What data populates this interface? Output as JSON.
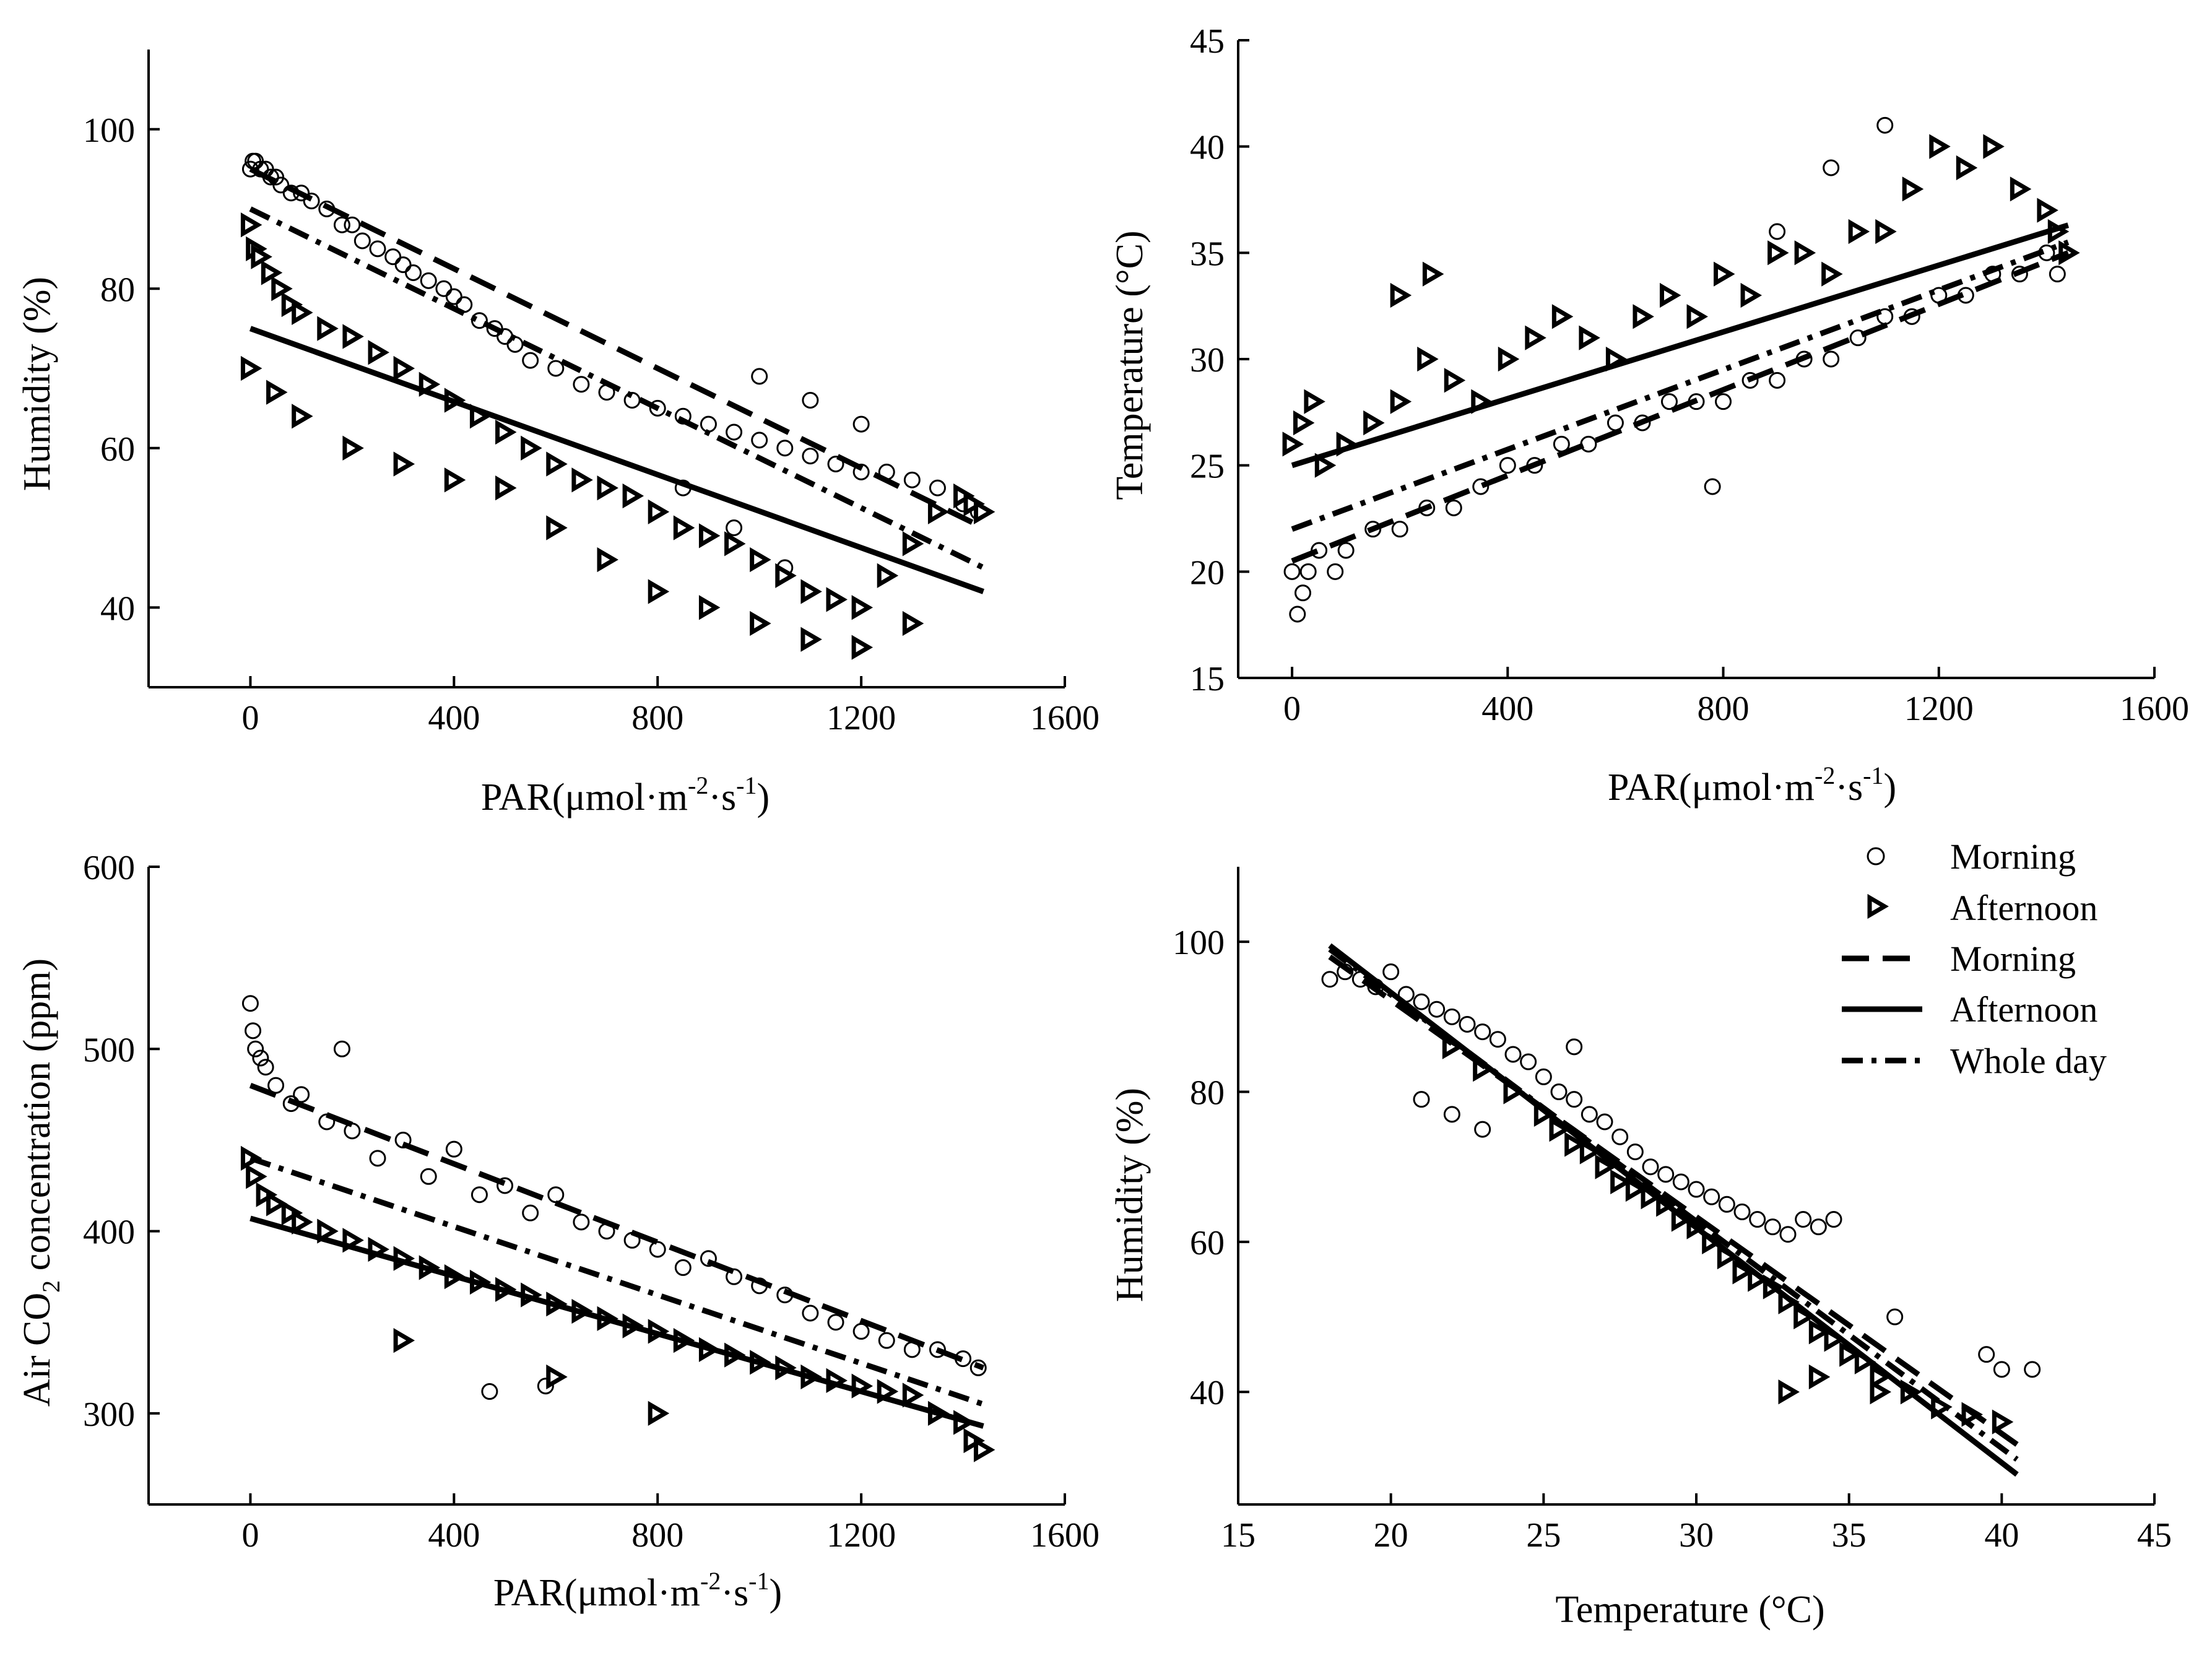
{
  "figure": {
    "description_panels": [
      "humidity-vs-par",
      "temperature-vs-par",
      "co2-vs-par",
      "humidity-vs-temperature"
    ]
  },
  "legend": {
    "entries": [
      {
        "key": "morning_points",
        "label": "Morning",
        "style": "circle"
      },
      {
        "key": "afternoon_points",
        "label": "Afternoon",
        "style": "triangle"
      },
      {
        "key": "morning_fit",
        "label": "Morning",
        "style": "dash"
      },
      {
        "key": "afternoon_fit",
        "label": "Afternoon",
        "style": "solid"
      },
      {
        "key": "wholeday_fit",
        "label": "Whole day",
        "style": "dashdot"
      }
    ],
    "placement": "top-right of bottom-right panel"
  },
  "chart_data": [
    {
      "id": "humidity-vs-par",
      "type": "scatter",
      "xlabel": "PAR(μmol·m-2·s-1)",
      "xlabel_main": "PAR(μmol·m",
      "xlabel_sup1": "-2",
      "xlabel_mid": "·s",
      "xlabel_sup2": "-1",
      "xlabel_end": ")",
      "ylabel": "Humidity (%)",
      "xlim": [
        -200,
        1600
      ],
      "ylim": [
        30,
        110
      ],
      "xticks": [
        0,
        400,
        800,
        1200,
        1600
      ],
      "xtick_labels": [
        "0",
        "400",
        "800",
        "1200",
        "1600"
      ],
      "yticks": [
        40,
        60,
        80,
        100
      ],
      "ytick_labels": [
        "40",
        "60",
        "80",
        "100"
      ],
      "series": [
        {
          "name": "Morning",
          "kind": "points",
          "marker": "circle",
          "x": [
            0,
            5,
            10,
            20,
            30,
            40,
            50,
            60,
            80,
            100,
            120,
            150,
            180,
            200,
            220,
            250,
            280,
            300,
            320,
            350,
            380,
            400,
            420,
            450,
            480,
            500,
            520,
            550,
            600,
            650,
            700,
            750,
            800,
            850,
            900,
            950,
            1000,
            1050,
            1100,
            1150,
            1200,
            1250,
            1300,
            1350,
            1400,
            1430,
            1000,
            1100,
            1200,
            1050,
            950,
            850
          ],
          "y": [
            95,
            96,
            96,
            95,
            95,
            94,
            94,
            93,
            92,
            92,
            91,
            90,
            88,
            88,
            86,
            85,
            84,
            83,
            82,
            81,
            80,
            79,
            78,
            76,
            75,
            74,
            73,
            71,
            70,
            68,
            67,
            66,
            65,
            64,
            63,
            62,
            61,
            60,
            59,
            58,
            57,
            57,
            56,
            55,
            53,
            52,
            69,
            66,
            63,
            45,
            50,
            55
          ]
        },
        {
          "name": "Afternoon",
          "kind": "points",
          "marker": "triangle",
          "x": [
            0,
            10,
            20,
            40,
            60,
            80,
            100,
            150,
            200,
            250,
            300,
            350,
            400,
            450,
            500,
            550,
            600,
            650,
            700,
            750,
            800,
            850,
            900,
            950,
            1000,
            1050,
            1100,
            1150,
            1200,
            1250,
            1300,
            1350,
            1400,
            1420,
            1440,
            0,
            50,
            100,
            200,
            300,
            400,
            500,
            600,
            700,
            800,
            900,
            1000,
            1100,
            1200,
            1300
          ],
          "y": [
            88,
            85,
            84,
            82,
            80,
            78,
            77,
            75,
            74,
            72,
            70,
            68,
            66,
            64,
            62,
            60,
            58,
            56,
            55,
            54,
            52,
            50,
            49,
            48,
            46,
            44,
            42,
            41,
            40,
            44,
            48,
            52,
            54,
            53,
            52,
            70,
            67,
            64,
            60,
            58,
            56,
            55,
            50,
            46,
            42,
            40,
            38,
            36,
            35,
            38
          ]
        },
        {
          "name": "Morning fit",
          "kind": "line",
          "style": "dash",
          "x": [
            0,
            1440
          ],
          "y": [
            95,
            50
          ]
        },
        {
          "name": "Afternoon fit",
          "kind": "line",
          "style": "solid",
          "x": [
            0,
            1440
          ],
          "y": [
            75,
            42
          ]
        },
        {
          "name": "Whole day fit",
          "kind": "line",
          "style": "dashdot",
          "x": [
            0,
            1440
          ],
          "y": [
            90,
            45
          ]
        }
      ]
    },
    {
      "id": "temperature-vs-par",
      "type": "scatter",
      "xlabel": "PAR(μmol·m-2·s-1)",
      "xlabel_main": "PAR(μmol·m",
      "xlabel_sup1": "-2",
      "xlabel_mid": "·s",
      "xlabel_sup2": "-1",
      "xlabel_end": ")",
      "ylabel": "Temperature (°C)",
      "xlim": [
        -100,
        1600
      ],
      "ylim": [
        15,
        45
      ],
      "xticks": [
        0,
        400,
        800,
        1200,
        1600
      ],
      "xtick_labels": [
        "0",
        "400",
        "800",
        "1200",
        "1600"
      ],
      "yticks": [
        15,
        20,
        25,
        30,
        35,
        40,
        45
      ],
      "ytick_labels": [
        "15",
        "20",
        "25",
        "30",
        "35",
        "40",
        "45"
      ],
      "series": [
        {
          "name": "Morning",
          "kind": "points",
          "marker": "circle",
          "x": [
            0,
            10,
            20,
            30,
            50,
            80,
            100,
            150,
            200,
            250,
            300,
            350,
            400,
            450,
            500,
            550,
            600,
            650,
            700,
            750,
            800,
            850,
            900,
            950,
            1000,
            1050,
            1100,
            1150,
            1200,
            1250,
            1300,
            1350,
            1400,
            1420,
            1100,
            1000,
            900,
            780
          ],
          "y": [
            20,
            18,
            19,
            20,
            21,
            20,
            21,
            22,
            22,
            23,
            23,
            24,
            25,
            25,
            26,
            26,
            27,
            27,
            28,
            28,
            28,
            29,
            29,
            30,
            30,
            31,
            32,
            32,
            33,
            33,
            34,
            34,
            35,
            34,
            41,
            39,
            36,
            24
          ]
        },
        {
          "name": "Afternoon",
          "kind": "points",
          "marker": "triangle",
          "x": [
            0,
            20,
            40,
            60,
            100,
            150,
            200,
            250,
            300,
            350,
            400,
            450,
            500,
            550,
            600,
            650,
            700,
            750,
            800,
            850,
            900,
            950,
            1000,
            1050,
            1100,
            1150,
            1200,
            1250,
            1300,
            1350,
            1400,
            1420,
            1440,
            200,
            260
          ],
          "y": [
            26,
            27,
            28,
            25,
            26,
            27,
            28,
            30,
            29,
            28,
            30,
            31,
            32,
            31,
            30,
            32,
            33,
            32,
            34,
            33,
            35,
            35,
            34,
            36,
            36,
            38,
            40,
            39,
            40,
            38,
            37,
            36,
            35,
            33,
            34
          ]
        },
        {
          "name": "Morning fit",
          "kind": "line",
          "style": "dash",
          "x": [
            0,
            1440
          ],
          "y": [
            20.5,
            35
          ]
        },
        {
          "name": "Afternoon fit",
          "kind": "line",
          "style": "solid",
          "x": [
            0,
            1440
          ],
          "y": [
            25,
            36.3
          ]
        },
        {
          "name": "Whole day fit",
          "kind": "line",
          "style": "dashdot",
          "x": [
            0,
            1440
          ],
          "y": [
            22,
            35.5
          ]
        }
      ]
    },
    {
      "id": "co2-vs-par",
      "type": "scatter",
      "xlabel": "PAR(μmol·m-2·s-1)",
      "xlabel_main": "PAR(μmol·m",
      "xlabel_sup1": "-2",
      "xlabel_mid": "·s",
      "xlabel_sup2": "-1",
      "xlabel_end": ")",
      "ylabel": "Air CO2 concentration (ppm)",
      "ylabel_pre": "Air CO",
      "ylabel_sub": "2",
      "ylabel_post": " concentration (ppm)",
      "xlim": [
        -200,
        1600
      ],
      "ylim": [
        250,
        600
      ],
      "xticks": [
        0,
        400,
        800,
        1200,
        1600
      ],
      "xtick_labels": [
        "0",
        "400",
        "800",
        "1200",
        "1600"
      ],
      "yticks": [
        300,
        400,
        500,
        600
      ],
      "ytick_labels": [
        "300",
        "400",
        "500",
        "600"
      ],
      "series": [
        {
          "name": "Morning",
          "kind": "points",
          "marker": "circle",
          "x": [
            0,
            5,
            10,
            20,
            30,
            50,
            80,
            100,
            150,
            180,
            200,
            250,
            300,
            350,
            400,
            450,
            500,
            550,
            600,
            650,
            700,
            750,
            800,
            850,
            900,
            950,
            1000,
            1050,
            1100,
            1150,
            1200,
            1250,
            1300,
            1350,
            1400,
            1430,
            470,
            580
          ],
          "y": [
            525,
            510,
            500,
            495,
            490,
            480,
            470,
            475,
            460,
            500,
            455,
            440,
            450,
            430,
            445,
            420,
            425,
            410,
            420,
            405,
            400,
            395,
            390,
            380,
            385,
            375,
            370,
            365,
            355,
            350,
            345,
            340,
            335,
            335,
            330,
            325,
            312,
            315
          ]
        },
        {
          "name": "Afternoon",
          "kind": "points",
          "marker": "triangle",
          "x": [
            0,
            10,
            30,
            50,
            80,
            100,
            150,
            200,
            250,
            300,
            350,
            400,
            450,
            500,
            550,
            600,
            650,
            700,
            750,
            800,
            850,
            900,
            950,
            1000,
            1050,
            1100,
            1150,
            1200,
            1250,
            1300,
            1350,
            1400,
            1420,
            1440,
            300,
            600,
            800
          ],
          "y": [
            440,
            430,
            420,
            415,
            410,
            405,
            400,
            395,
            390,
            385,
            380,
            375,
            372,
            368,
            365,
            360,
            356,
            352,
            348,
            345,
            340,
            335,
            332,
            328,
            325,
            320,
            318,
            315,
            312,
            310,
            300,
            295,
            285,
            280,
            340,
            320,
            300
          ]
        },
        {
          "name": "Morning fit",
          "kind": "line",
          "style": "dash",
          "x": [
            0,
            1440
          ],
          "y": [
            480,
            325
          ]
        },
        {
          "name": "Afternoon fit",
          "kind": "line",
          "style": "solid",
          "x": [
            0,
            1440
          ],
          "y": [
            407,
            293
          ]
        },
        {
          "name": "Whole day fit",
          "kind": "line",
          "style": "dashdot",
          "x": [
            0,
            1440
          ],
          "y": [
            440,
            305
          ]
        }
      ]
    },
    {
      "id": "humidity-vs-temperature",
      "type": "scatter",
      "xlabel": "Temperature (°C)",
      "ylabel": "Humidity (%)",
      "xlim": [
        15,
        45
      ],
      "ylim": [
        25,
        110
      ],
      "xticks": [
        15,
        20,
        25,
        30,
        35,
        40,
        45
      ],
      "xtick_labels": [
        "15",
        "20",
        "25",
        "30",
        "35",
        "40",
        "45"
      ],
      "yticks": [
        40,
        60,
        80,
        100
      ],
      "ytick_labels": [
        "40",
        "60",
        "80",
        "100"
      ],
      "series": [
        {
          "name": "Morning",
          "kind": "points",
          "marker": "circle",
          "x": [
            18,
            18.5,
            19,
            19.5,
            20,
            20.5,
            21,
            21.5,
            22,
            22.5,
            23,
            23.5,
            24,
            24.5,
            25,
            25.5,
            26,
            26.5,
            27,
            27.5,
            28,
            28.5,
            29,
            29.5,
            30,
            30.5,
            31,
            31.5,
            32,
            32.5,
            33,
            33.5,
            34,
            34.5,
            36.5,
            39.5,
            40,
            41,
            21,
            22,
            23,
            26
          ],
          "y": [
            95,
            96,
            95,
            94,
            96,
            93,
            92,
            91,
            90,
            89,
            88,
            87,
            85,
            84,
            82,
            80,
            79,
            77,
            76,
            74,
            72,
            70,
            69,
            68,
            67,
            66,
            65,
            64,
            63,
            62,
            61,
            63,
            62,
            63,
            50,
            45,
            43,
            43,
            79,
            77,
            75,
            86
          ]
        },
        {
          "name": "Afternoon",
          "kind": "points",
          "marker": "triangle",
          "x": [
            22,
            23,
            24,
            25,
            25.5,
            26,
            26.5,
            27,
            27.5,
            28,
            28.5,
            29,
            29.5,
            30,
            30.5,
            31,
            31.5,
            32,
            32.5,
            33,
            33.5,
            34,
            34.5,
            35,
            35.5,
            36,
            37,
            38,
            39,
            40,
            33,
            34,
            36
          ],
          "y": [
            86,
            83,
            80,
            77,
            75,
            73,
            72,
            70,
            68,
            67,
            66,
            65,
            63,
            62,
            60,
            58,
            56,
            55,
            54,
            52,
            50,
            48,
            47,
            45,
            44,
            42,
            40,
            38,
            37,
            36,
            40,
            42,
            40
          ]
        },
        {
          "name": "Morning fit",
          "kind": "line",
          "style": "dash",
          "x": [
            18,
            40.5
          ],
          "y": [
            98,
            33
          ]
        },
        {
          "name": "Afternoon fit",
          "kind": "line",
          "style": "solid",
          "x": [
            18,
            40.5
          ],
          "y": [
            99.5,
            29
          ]
        },
        {
          "name": "Whole day fit",
          "kind": "line",
          "style": "dashdot",
          "x": [
            18,
            40.5
          ],
          "y": [
            99,
            31
          ]
        }
      ]
    }
  ]
}
